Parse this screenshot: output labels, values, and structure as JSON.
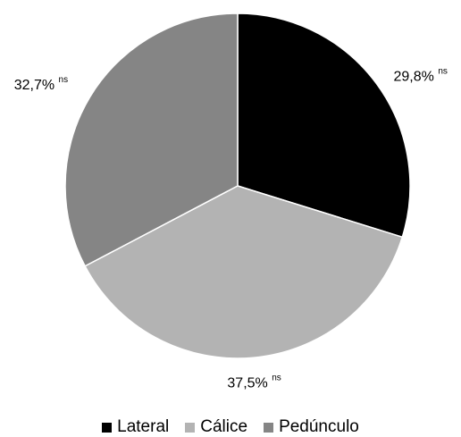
{
  "chart_data": {
    "type": "pie",
    "start_angle_deg": 0,
    "direction": "clockwise",
    "slices": [
      {
        "label": "Lateral",
        "value": 29.8,
        "display": "29,8%",
        "annotation": "ns",
        "color": "#000000"
      },
      {
        "label": "Cálice",
        "value": 37.5,
        "display": "37,5%",
        "annotation": "ns",
        "color": "#b3b3b3"
      },
      {
        "label": "Pedúnculo",
        "value": 32.7,
        "display": "32,7%",
        "annotation": "ns",
        "color": "#858585"
      }
    ],
    "legend_position": "bottom"
  }
}
